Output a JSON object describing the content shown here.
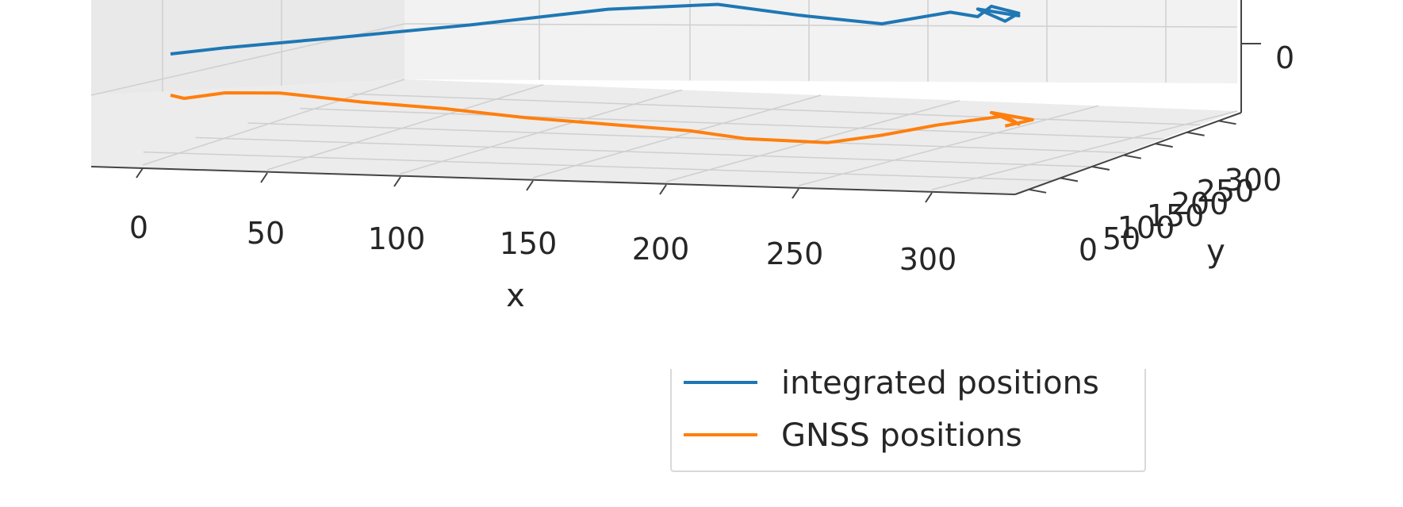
{
  "chart_data": {
    "type": "line",
    "projection": "3d",
    "title": "",
    "xlabel": "x",
    "ylabel": "y",
    "zlabel": "",
    "x_ticks": [
      "0",
      "50",
      "100",
      "150",
      "200",
      "250",
      "300"
    ],
    "y_ticks": [
      "0",
      "50",
      "100",
      "150",
      "200",
      "250",
      "300"
    ],
    "z_ticks": [
      "0"
    ],
    "grid": true,
    "legend_position": "bottom-center",
    "series": [
      {
        "name": "integrated positions",
        "color": "#1f77b4",
        "points": [
          [
            0,
            0
          ],
          [
            20,
            2
          ],
          [
            60,
            5
          ],
          [
            110,
            9
          ],
          [
            160,
            14
          ],
          [
            200,
            15
          ],
          [
            230,
            10
          ],
          [
            260,
            6
          ],
          [
            285,
            10
          ],
          [
            295,
            8
          ],
          [
            300,
            12
          ],
          [
            310,
            9
          ],
          [
            305,
            6
          ],
          [
            295,
            11
          ],
          [
            310,
            8
          ],
          [
            300,
            10
          ]
        ]
      },
      {
        "name": "GNSS positions",
        "color": "#ff7f0e",
        "points": [
          [
            0,
            0
          ],
          [
            5,
            -1
          ],
          [
            20,
            2
          ],
          [
            40,
            3
          ],
          [
            70,
            1
          ],
          [
            100,
            0
          ],
          [
            130,
            -2
          ],
          [
            160,
            -3
          ],
          [
            190,
            -4
          ],
          [
            210,
            -6
          ],
          [
            240,
            -6
          ],
          [
            260,
            -2
          ],
          [
            280,
            3
          ],
          [
            295,
            6
          ],
          [
            305,
            8
          ],
          [
            310,
            5
          ],
          [
            300,
            9
          ],
          [
            315,
            7
          ],
          [
            305,
            4
          ]
        ]
      }
    ]
  }
}
